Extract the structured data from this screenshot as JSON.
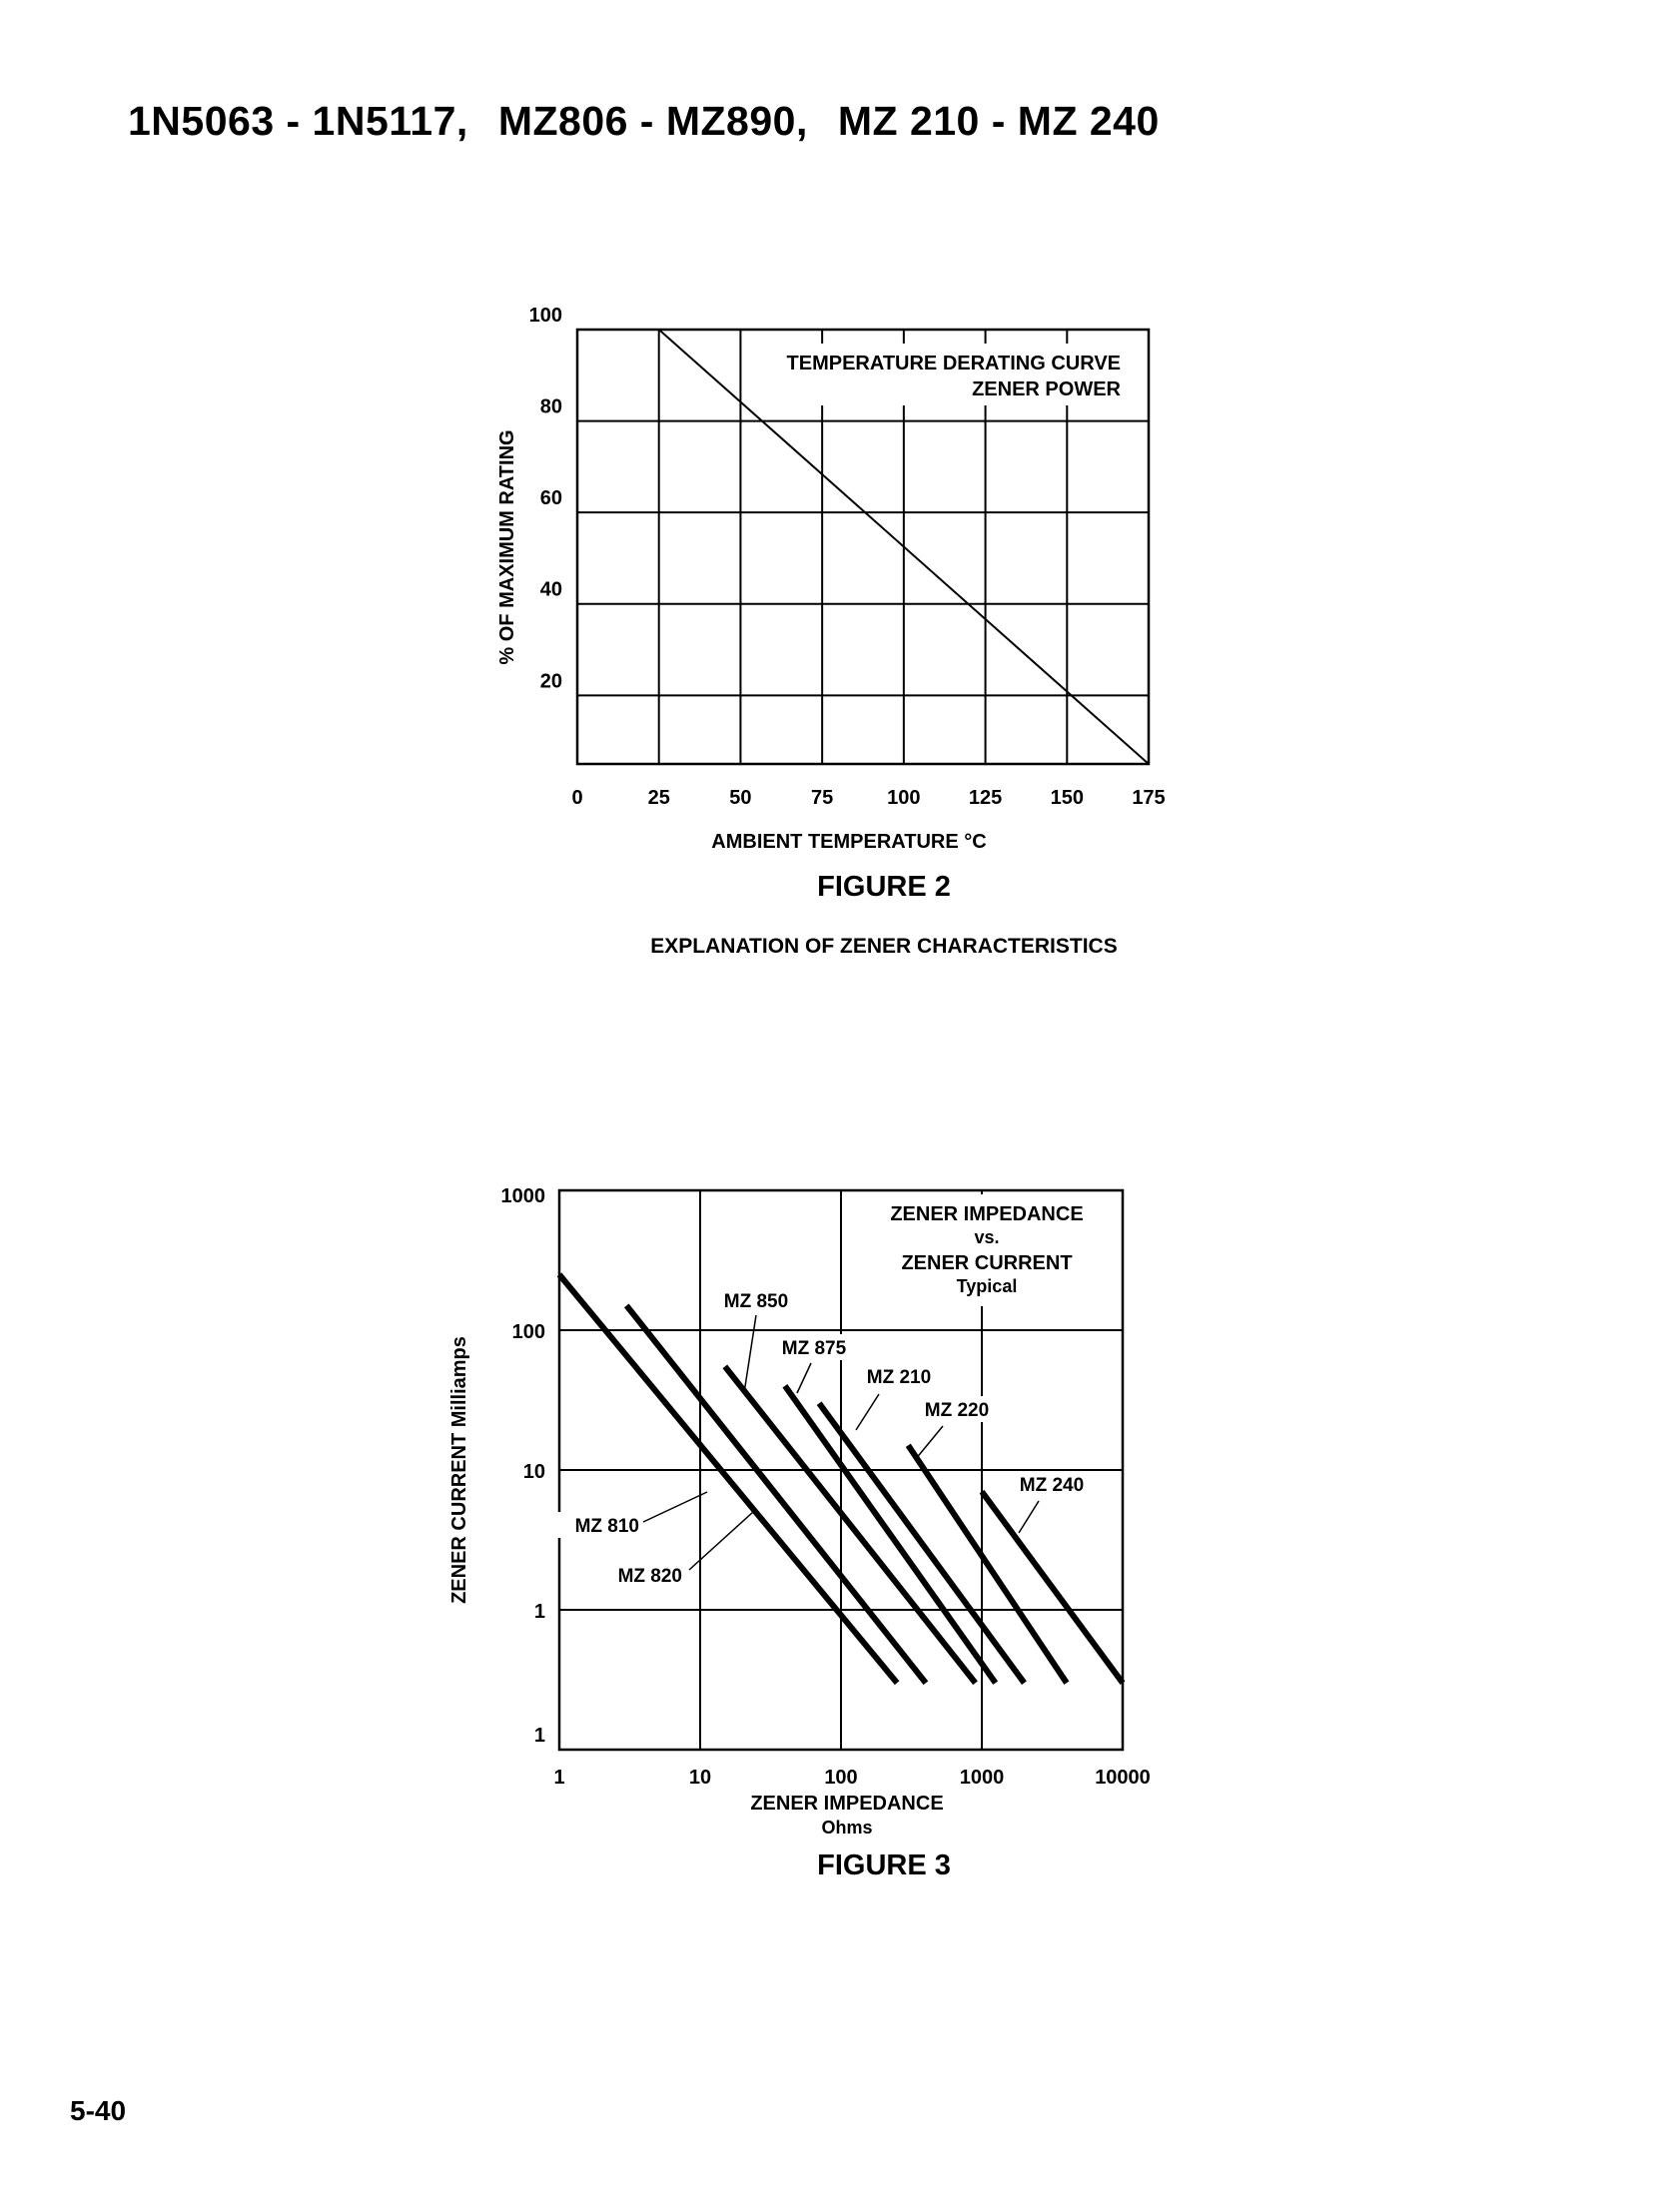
{
  "header": {
    "parts": [
      "1N5063 - 1N5117,",
      "MZ806 - MZ890,",
      "MZ 210 - MZ 240"
    ]
  },
  "figure2": {
    "caption": "FIGURE 2",
    "subcaption": "EXPLANATION OF ZENER CHARACTERISTICS"
  },
  "figure3": {
    "caption": "FIGURE 3"
  },
  "page_number": "5-40",
  "chart_data": [
    {
      "type": "line",
      "title": "TEMPERATURE DERATING CURVE",
      "subtitle": "ZENER POWER",
      "xlabel": "AMBIENT TEMPERATURE °C",
      "ylabel": "% OF MAXIMUM RATING",
      "xlim": [
        0,
        175
      ],
      "ylim": [
        5,
        100
      ],
      "xticks": [
        "0",
        "25",
        "50",
        "75",
        "100",
        "125",
        "150",
        "175"
      ],
      "yticks": [
        "20",
        "40",
        "60",
        "80",
        "100"
      ],
      "grid": true,
      "series": [
        {
          "x": [
            25,
            175
          ],
          "y": [
            100,
            5
          ]
        }
      ]
    },
    {
      "type": "line",
      "title": "ZENER IMPEDANCE",
      "title_lines": [
        "ZENER IMPEDANCE",
        "vs.",
        "ZENER CURRENT",
        "Typical"
      ],
      "xlabel": "ZENER IMPEDANCE",
      "xlabel_unit": "Ohms",
      "ylabel": "ZENER CURRENT Milliamps",
      "x_scale": "log",
      "y_scale": "log",
      "xlim": [
        1,
        10000
      ],
      "ylim": [
        0.1,
        1000
      ],
      "xticks": [
        "1",
        "10",
        "100",
        "1000",
        "10000"
      ],
      "yticks": [
        "1",
        "1",
        "10",
        "100",
        "1000"
      ],
      "grid": true,
      "series": [
        {
          "name": "MZ 810",
          "x": [
            1,
            250
          ],
          "y": [
            250,
            0.3
          ]
        },
        {
          "name": "MZ 820",
          "x": [
            3,
            400
          ],
          "y": [
            150,
            0.3
          ]
        },
        {
          "name": "MZ 850",
          "x": [
            15,
            900
          ],
          "y": [
            55,
            0.3
          ]
        },
        {
          "name": "MZ 875",
          "x": [
            40,
            1250
          ],
          "y": [
            40,
            0.3
          ]
        },
        {
          "name": "MZ 210",
          "x": [
            70,
            2000
          ],
          "y": [
            30,
            0.3
          ]
        },
        {
          "name": "MZ 220",
          "x": [
            300,
            4000
          ],
          "y": [
            15,
            0.3
          ]
        },
        {
          "name": "MZ 240",
          "x": [
            1000,
            10000
          ],
          "y": [
            7,
            0.3
          ]
        }
      ]
    }
  ]
}
